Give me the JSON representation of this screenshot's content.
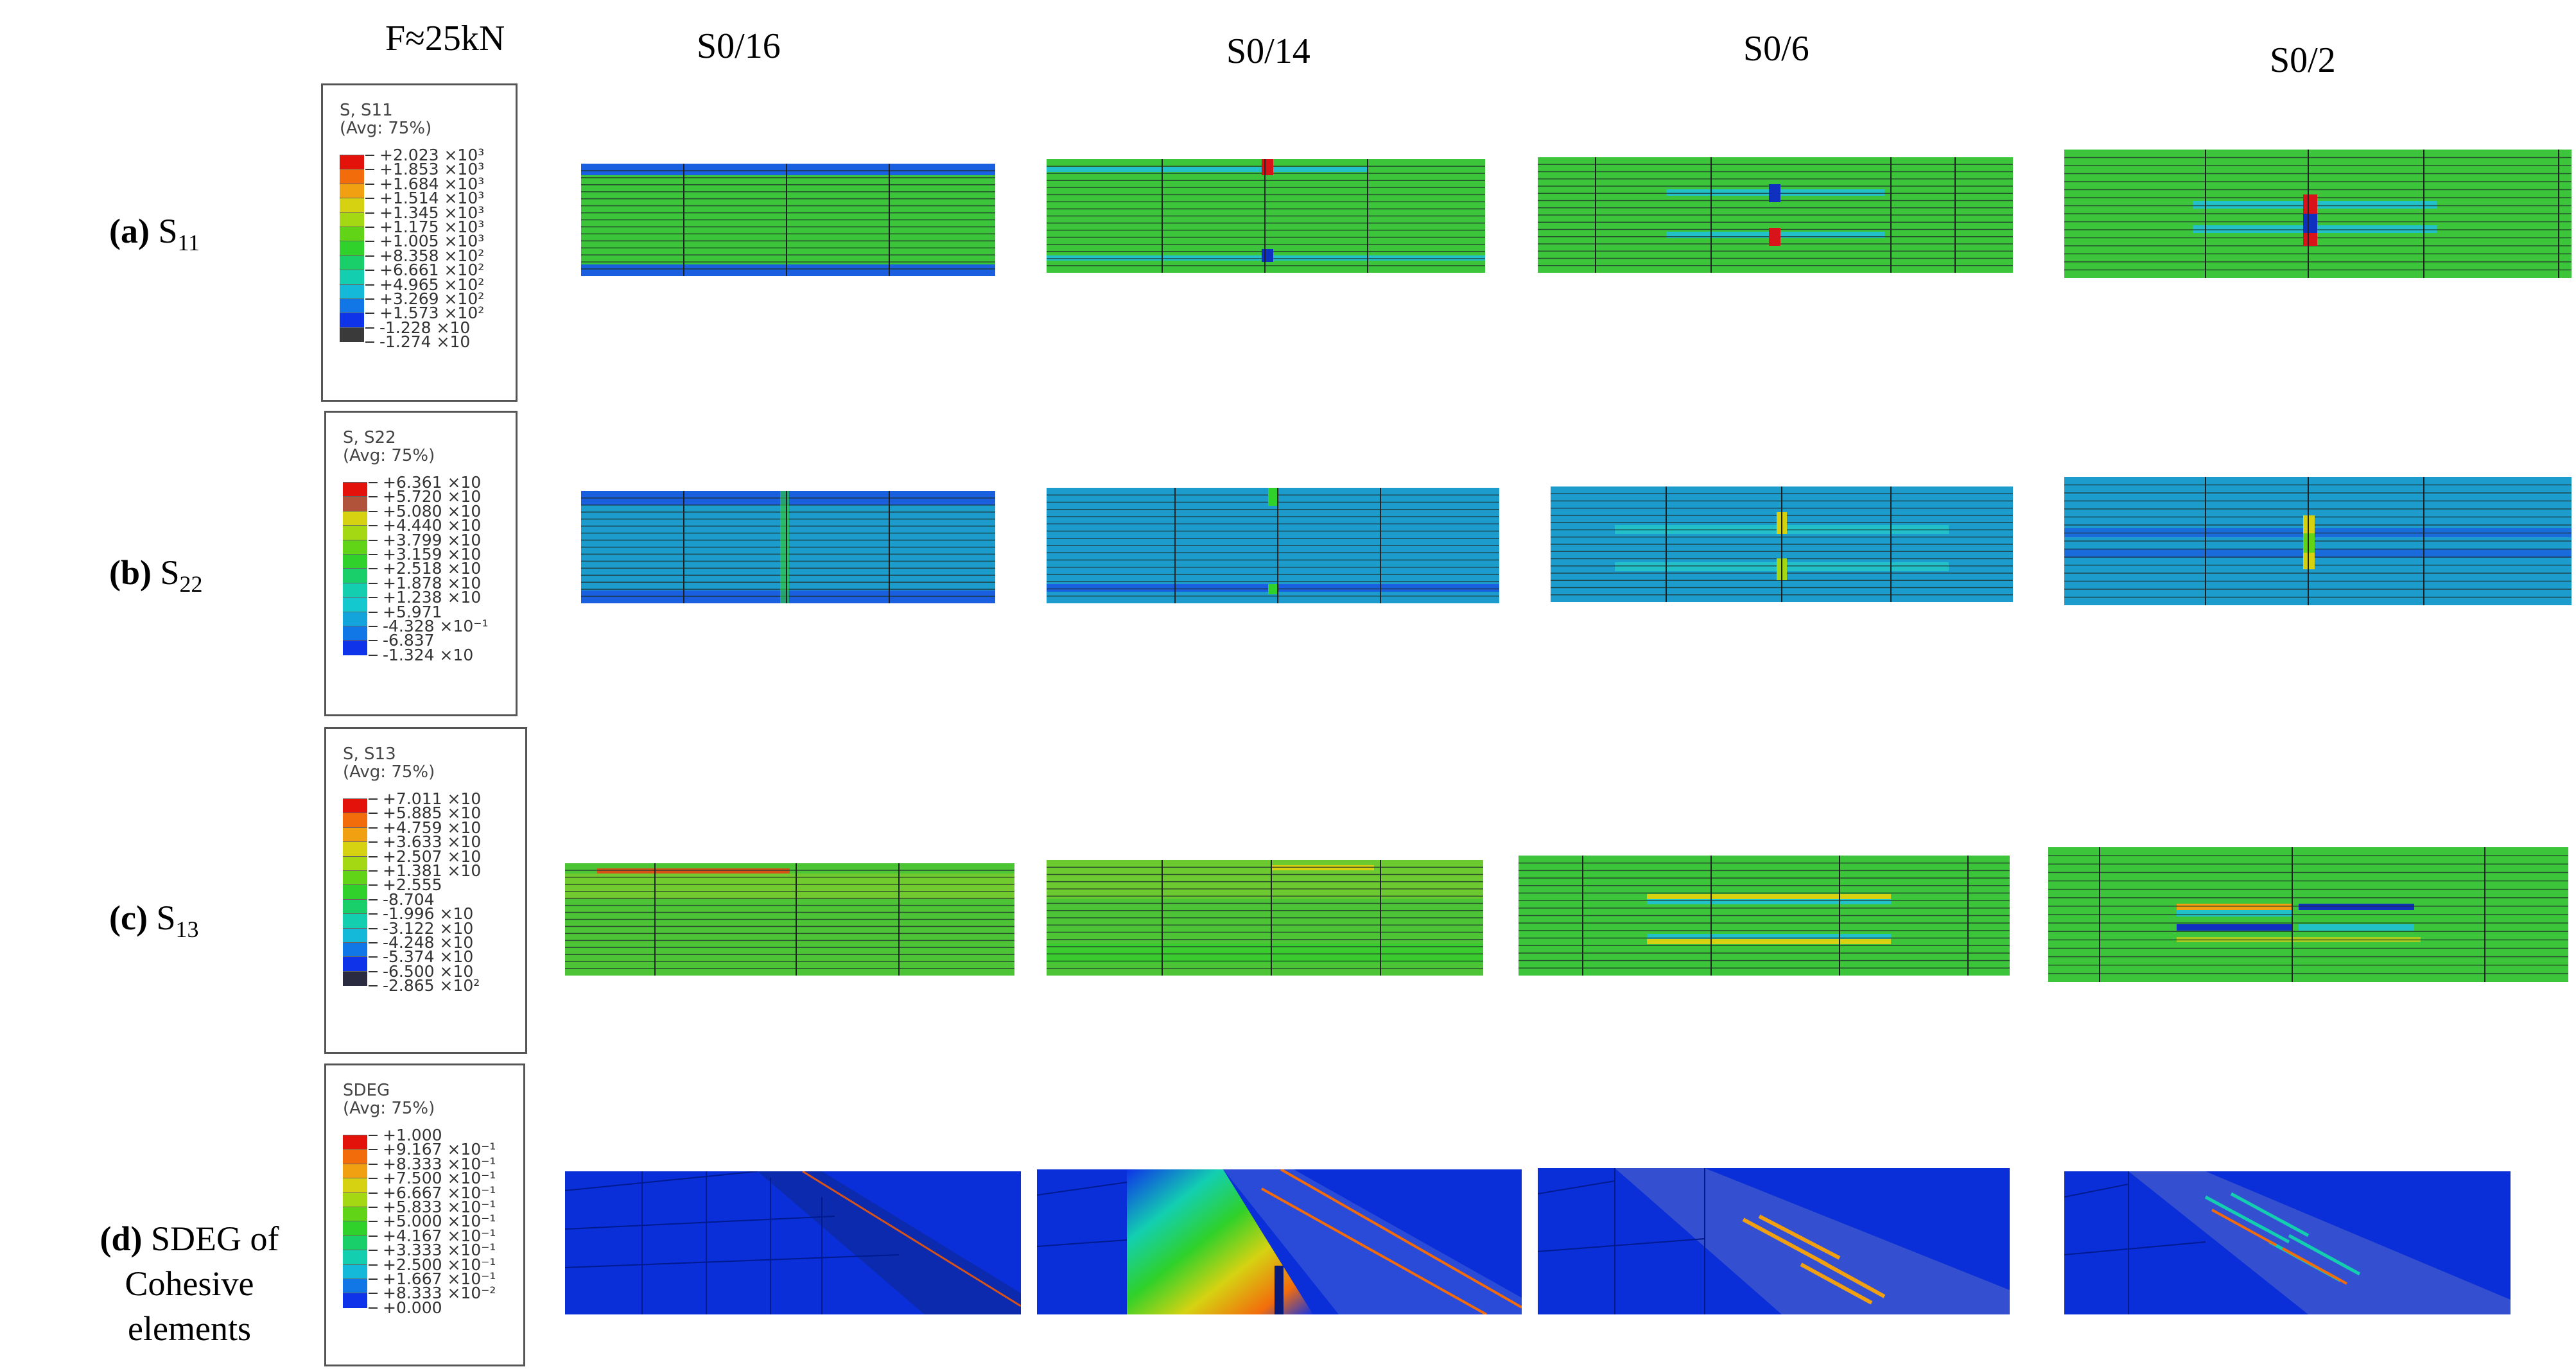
{
  "header": {
    "force": "F≈25kN"
  },
  "columns": [
    "S0/16",
    "S0/14",
    "S0/6",
    "S0/2"
  ],
  "rows": [
    {
      "prefix": "(a)",
      "label": "S",
      "sub": "11",
      "line2": ""
    },
    {
      "prefix": "(b)",
      "label": "S",
      "sub": "22",
      "line2": ""
    },
    {
      "prefix": "(c)",
      "label": "S",
      "sub": "13",
      "line2": ""
    },
    {
      "prefix": "(d)",
      "label": "SDEG of",
      "sub": "",
      "line2": "Cohesive elements"
    }
  ],
  "legends": [
    {
      "title": "S, S11",
      "avg": "(Avg: 75%)",
      "colors": [
        "#e3120b",
        "#f26c0c",
        "#f0a010",
        "#d6d212",
        "#a4d813",
        "#62d417",
        "#2fd12a",
        "#18cf6a",
        "#13cfb0",
        "#14b8d8",
        "#1277e6",
        "#0e33e8",
        "#3a3a3a"
      ],
      "values": [
        "+2.023 ×10³",
        "+1.853 ×10³",
        "+1.684 ×10³",
        "+1.514 ×10³",
        "+1.345 ×10³",
        "+1.175 ×10³",
        "+1.005 ×10³",
        "+8.358 ×10²",
        "+6.661 ×10²",
        "+4.965 ×10²",
        "+3.269 ×10²",
        "+1.573 ×10²",
        "-1.228 ×10",
        "-1.274 ×10"
      ]
    },
    {
      "title": "S, S22",
      "avg": "(Avg: 75%)",
      "colors": [
        "#e3120b",
        "#b0533a",
        "#d6d212",
        "#a4d813",
        "#62d417",
        "#2fd12a",
        "#18cf6a",
        "#13cfb0",
        "#14c8d0",
        "#14a4dc",
        "#1277e6",
        "#0e33e8"
      ],
      "values": [
        "+6.361 ×10",
        "+5.720 ×10",
        "+5.080 ×10",
        "+4.440 ×10",
        "+3.799 ×10",
        "+3.159 ×10",
        "+2.518 ×10",
        "+1.878 ×10",
        "+1.238 ×10",
        "+5.971",
        "-4.328 ×10⁻¹",
        "-6.837",
        "-1.324 ×10"
      ]
    },
    {
      "title": "S, S13",
      "avg": "(Avg: 75%)",
      "colors": [
        "#e3120b",
        "#f26c0c",
        "#f0a010",
        "#d6d212",
        "#a4d813",
        "#62d417",
        "#2fd12a",
        "#18cf6a",
        "#13cfb0",
        "#14b8d8",
        "#1277e6",
        "#0e33e8",
        "#2a2a40"
      ],
      "values": [
        "+7.011 ×10",
        "+5.885 ×10",
        "+4.759 ×10",
        "+3.633 ×10",
        "+2.507 ×10",
        "+1.381 ×10",
        "+2.555",
        "-8.704",
        "-1.996 ×10",
        "-3.122 ×10",
        "-4.248 ×10",
        "-5.374 ×10",
        "-6.500 ×10",
        "-2.865 ×10²"
      ]
    },
    {
      "title": "SDEG",
      "avg": "(Avg: 75%)",
      "colors": [
        "#e3120b",
        "#f26c0c",
        "#f0a010",
        "#d6d212",
        "#a4d813",
        "#62d417",
        "#2fd12a",
        "#18cf6a",
        "#13cfb0",
        "#14b8d8",
        "#1277e6",
        "#0e33e8"
      ],
      "values": [
        "+1.000",
        "+9.167 ×10⁻¹",
        "+8.333 ×10⁻¹",
        "+7.500 ×10⁻¹",
        "+6.667 ×10⁻¹",
        "+5.833 ×10⁻¹",
        "+5.000 ×10⁻¹",
        "+4.167 ×10⁻¹",
        "+3.333 ×10⁻¹",
        "+2.500 ×10⁻¹",
        "+1.667 ×10⁻¹",
        "+8.333 ×10⁻²",
        "+0.000"
      ]
    }
  ]
}
